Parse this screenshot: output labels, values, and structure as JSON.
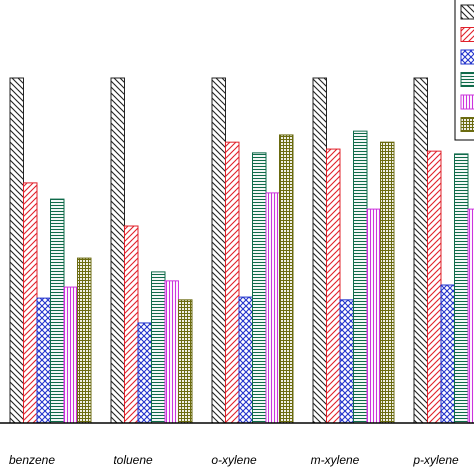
{
  "chart_data": {
    "type": "bar",
    "categories": [
      "benzene",
      "toluene",
      "o-xylene",
      "m-xylene",
      "p-xylene"
    ],
    "ylim": [
      0,
      100
    ],
    "series": [
      {
        "color": "#222222",
        "hatch": "diag-down",
        "values": [
          100,
          100,
          100,
          100,
          100
        ]
      },
      {
        "color": "#e0202a",
        "hatch": "diag-up",
        "values": [
          69.6,
          57.1,
          81.4,
          79.4,
          78.8
        ]
      },
      {
        "color": "#2233cc",
        "hatch": "cross",
        "values": [
          36.2,
          29,
          36.5,
          35.7,
          40
        ]
      },
      {
        "color": "#0f6b4a",
        "hatch": "horizontal",
        "values": [
          64.9,
          43.8,
          78.3,
          84.6,
          78
        ]
      },
      {
        "color": "#cc33dd",
        "hatch": "vertical",
        "values": [
          39.4,
          41.2,
          66.7,
          62,
          62
        ]
      },
      {
        "color": "#6b6b10",
        "hatch": "grid",
        "values": [
          47.8,
          35.7,
          83.5,
          81.4,
          null
        ]
      }
    ]
  }
}
